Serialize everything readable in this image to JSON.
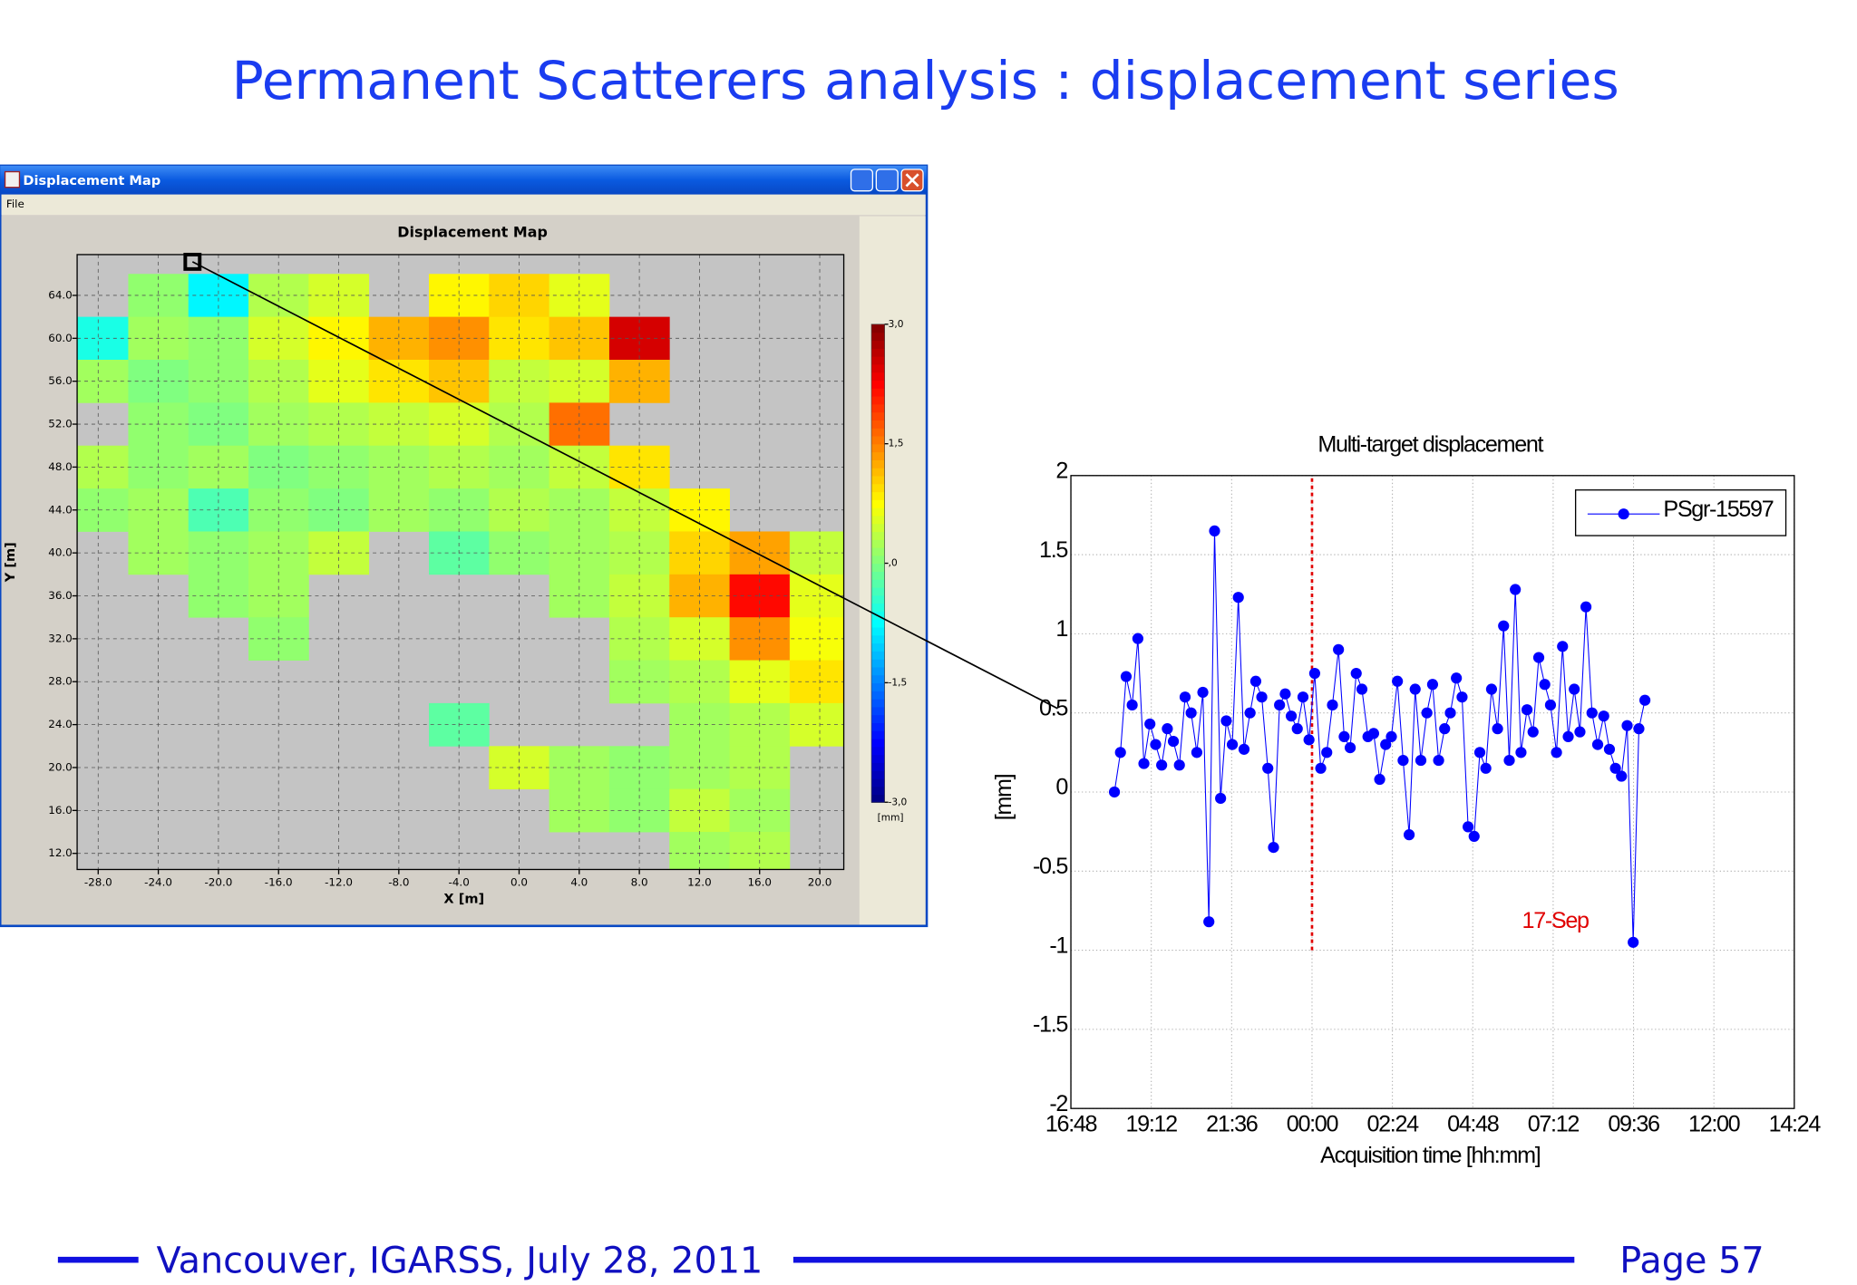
{
  "slide": {
    "title": "Permanent Scatterers analysis : displacement series",
    "footer": "Vancouver, IGARSS, July 28, 2011",
    "page": "Page 57"
  },
  "window": {
    "title": "Displacement Map",
    "menu": "File"
  },
  "chart_data": [
    {
      "type": "heatmap",
      "title": "Displacement Map",
      "xlabel": "X [m]",
      "ylabel": "Y [m]",
      "x": [
        -28,
        -24,
        -20,
        -16,
        -12,
        -8,
        -4,
        0,
        4,
        8,
        12,
        16,
        20
      ],
      "y": [
        64,
        60,
        56,
        52,
        48,
        44,
        40,
        36,
        32,
        28,
        24,
        20,
        16,
        12
      ],
      "values": [
        [
          null,
          0.1,
          -0.8,
          0.3,
          0.5,
          null,
          0.8,
          1,
          0.6,
          null,
          null,
          null,
          null
        ],
        [
          -0.6,
          0.2,
          0.1,
          0.5,
          0.8,
          1.2,
          1.4,
          0.9,
          1.1,
          2.5,
          null,
          null,
          null
        ],
        [
          0.2,
          0,
          0.1,
          0.3,
          0.6,
          0.9,
          1.1,
          0.4,
          0.5,
          1.2,
          null,
          null,
          null
        ],
        [
          null,
          0.1,
          0,
          0.2,
          0.3,
          0.4,
          0.5,
          0.3,
          1.6,
          null,
          null,
          null,
          null
        ],
        [
          0.3,
          0.1,
          0.2,
          0,
          0.1,
          0.2,
          0.3,
          0.2,
          0.4,
          0.9,
          null,
          null,
          null
        ],
        [
          0.1,
          0.2,
          -0.3,
          0.1,
          0,
          0.2,
          0.1,
          0.3,
          0.2,
          0.4,
          0.8,
          null,
          null
        ],
        [
          null,
          0.2,
          0.1,
          0.2,
          0.4,
          null,
          -0.2,
          0.1,
          0.2,
          0.3,
          1.0,
          1.3,
          0.4
        ],
        [
          null,
          null,
          0.1,
          0.2,
          null,
          null,
          null,
          null,
          0.2,
          0.4,
          1.2,
          2.2,
          0.6
        ],
        [
          null,
          null,
          null,
          0.1,
          null,
          null,
          null,
          null,
          null,
          0.3,
          0.5,
          1.4,
          0.7
        ],
        [
          null,
          null,
          null,
          null,
          null,
          null,
          null,
          null,
          null,
          0.2,
          0.3,
          0.6,
          0.9
        ],
        [
          null,
          null,
          null,
          null,
          null,
          null,
          -0.2,
          null,
          null,
          null,
          0.2,
          0.3,
          0.5
        ],
        [
          null,
          null,
          null,
          null,
          null,
          null,
          null,
          0.5,
          0.2,
          0.1,
          0.2,
          0.3,
          null
        ],
        [
          null,
          null,
          null,
          null,
          null,
          null,
          null,
          null,
          0.2,
          0.1,
          0.4,
          0.2,
          null
        ],
        [
          null,
          null,
          null,
          null,
          null,
          null,
          null,
          null,
          null,
          null,
          0.2,
          0.3,
          null
        ]
      ],
      "xlim": [
        -29.4,
        21.6
      ],
      "ylim": [
        10.5,
        67.8
      ],
      "xticks": [
        {
          "value": -28,
          "label": "-28.0"
        },
        {
          "value": -24,
          "label": "-24.0"
        },
        {
          "value": -20,
          "label": "-20.0"
        },
        {
          "value": -16,
          "label": "-16.0"
        },
        {
          "value": -12,
          "label": "-12.0"
        },
        {
          "value": -8,
          "label": "-8.0"
        },
        {
          "value": -4,
          "label": "-4.0"
        },
        {
          "value": 0,
          "label": "0.0"
        },
        {
          "value": 4,
          "label": "4.0"
        },
        {
          "value": 8,
          "label": "8.0"
        },
        {
          "value": 12,
          "label": "12.0"
        },
        {
          "value": 16,
          "label": "16.0"
        },
        {
          "value": 20,
          "label": "20.0"
        }
      ],
      "yticks": [
        {
          "value": 12,
          "label": "12.0"
        },
        {
          "value": 16,
          "label": "16.0"
        },
        {
          "value": 20,
          "label": "20.0"
        },
        {
          "value": 24,
          "label": "24.0"
        },
        {
          "value": 28,
          "label": "28.0"
        },
        {
          "value": 32,
          "label": "32.0"
        },
        {
          "value": 36,
          "label": "36.0"
        },
        {
          "value": 40,
          "label": "40.0"
        },
        {
          "value": 44,
          "label": "44.0"
        },
        {
          "value": 48,
          "label": "48.0"
        },
        {
          "value": 52,
          "label": "52.0"
        },
        {
          "value": 56,
          "label": "56.0"
        },
        {
          "value": 60,
          "label": "60.0"
        },
        {
          "value": 64,
          "label": "64.0"
        }
      ],
      "grid": true,
      "colormap": "jet",
      "background": "#c4c4c4",
      "colorbar": {
        "label": "[mm]",
        "lim": [
          -3,
          3
        ],
        "ticks": [
          {
            "value": 3,
            "label": "3,0"
          },
          {
            "value": 1.5,
            "label": "1,5"
          },
          {
            "value": 0,
            "label": ",0"
          },
          {
            "value": -1.5,
            "label": "-1,5"
          },
          {
            "value": -3,
            "label": "-3,0"
          }
        ]
      }
    },
    {
      "type": "line",
      "title": "Multi-target displacement",
      "xlabel": "Acquisition time [hh:mm]",
      "ylabel": "[mm]",
      "x": [
        -5.9,
        -5.72,
        -5.55,
        -5.37,
        -5.2,
        -5.02,
        -4.84,
        -4.67,
        -4.49,
        -4.32,
        -4.14,
        -3.96,
        -3.79,
        -3.61,
        -3.44,
        -3.26,
        -3.08,
        -2.91,
        -2.73,
        -2.56,
        -2.38,
        -2.2,
        -2.03,
        -1.85,
        -1.68,
        -1.5,
        -1.32,
        -1.15,
        -0.97,
        -0.8,
        -0.62,
        -0.44,
        -0.27,
        -0.09,
        0.08,
        0.26,
        0.44,
        0.61,
        0.79,
        0.96,
        1.14,
        1.32,
        1.49,
        1.67,
        1.84,
        2.02,
        2.2,
        2.37,
        2.55,
        2.72,
        2.9,
        3.08,
        3.25,
        3.43,
        3.6,
        3.78,
        3.96,
        4.13,
        4.31,
        4.48,
        4.66,
        4.84,
        5.01,
        5.19,
        5.36,
        5.54,
        5.72,
        5.89,
        6.07,
        6.24,
        6.42,
        6.6,
        6.77,
        6.95,
        7.12,
        7.3,
        7.48,
        7.65,
        7.83,
        8.0,
        8.18,
        8.36,
        8.53,
        8.71,
        8.88,
        9.06,
        9.24,
        9.41,
        9.59,
        9.76,
        9.94
      ],
      "series": [
        {
          "name": "PSgr-15597",
          "color": "#0000ff",
          "values": [
            0,
            0.25,
            0.73,
            0.55,
            0.97,
            0.18,
            0.43,
            0.3,
            0.17,
            0.4,
            0.32,
            0.17,
            0.6,
            0.5,
            0.25,
            0.63,
            -0.82,
            1.65,
            -0.04,
            0.45,
            0.3,
            1.23,
            0.27,
            0.5,
            0.7,
            0.6,
            0.15,
            -0.35,
            0.55,
            0.62,
            0.48,
            0.4,
            0.6,
            0.33,
            0.75,
            0.15,
            0.25,
            0.55,
            0.9,
            0.35,
            0.28,
            0.75,
            0.65,
            0.35,
            0.37,
            0.08,
            0.3,
            0.35,
            0.7,
            0.2,
            -0.27,
            0.65,
            0.2,
            0.5,
            0.68,
            0.2,
            0.4,
            0.5,
            0.72,
            0.6,
            -0.22,
            -0.28,
            0.25,
            0.15,
            0.65,
            0.4,
            1.05,
            0.2,
            1.28,
            0.25,
            0.52,
            0.38,
            0.85,
            0.68,
            0.55,
            0.25,
            0.92,
            0.35,
            0.65,
            0.38,
            1.17,
            0.5,
            0.3,
            0.48,
            0.27,
            0.15,
            0.1,
            0.42,
            -0.95,
            0.4,
            0.58
          ]
        }
      ],
      "xlim": [
        -7.2,
        14.4
      ],
      "ylim": [
        -2,
        2
      ],
      "xticks": [
        {
          "value": -7.2,
          "label": "16:48"
        },
        {
          "value": -4.8,
          "label": "19:12"
        },
        {
          "value": -2.4,
          "label": "21:36"
        },
        {
          "value": 0,
          "label": "00:00"
        },
        {
          "value": 2.4,
          "label": "02:24"
        },
        {
          "value": 4.8,
          "label": "04:48"
        },
        {
          "value": 7.2,
          "label": "07:12"
        },
        {
          "value": 9.6,
          "label": "09:36"
        },
        {
          "value": 12,
          "label": "12:00"
        },
        {
          "value": 14.4,
          "label": "14:24"
        }
      ],
      "yticks": [
        2,
        1.5,
        1,
        0.5,
        0,
        -0.5,
        -1,
        -1.5,
        -2
      ],
      "grid": true,
      "legend": "upper right",
      "vline": {
        "x": 0,
        "ymin": -1,
        "ymax": 2,
        "color": "#e00000"
      },
      "annotations": [
        {
          "text": "17-Sep",
          "x": 7.26,
          "y": -0.82,
          "color": "#e00000"
        }
      ]
    }
  ]
}
